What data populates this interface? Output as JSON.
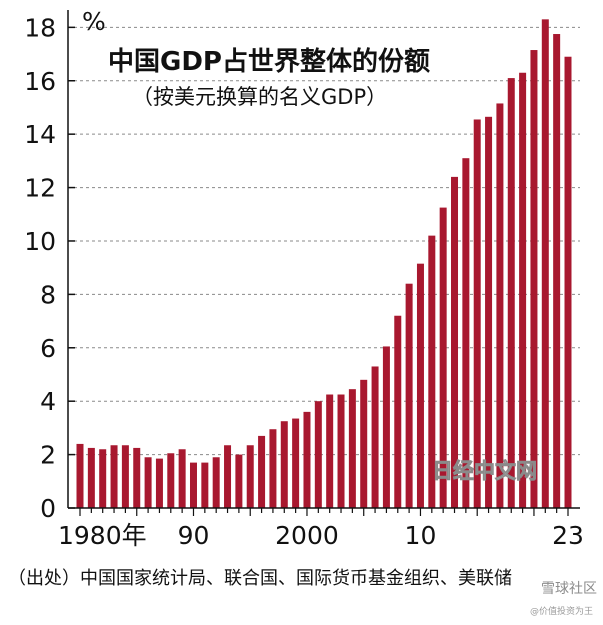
{
  "chart_data": {
    "type": "bar",
    "title": "中国GDP占世界整体的份额",
    "subtitle": "（按美元换算的名义GDP）",
    "unit": "%",
    "x": [
      1980,
      1981,
      1982,
      1983,
      1984,
      1985,
      1986,
      1987,
      1988,
      1989,
      1990,
      1991,
      1992,
      1993,
      1994,
      1995,
      1996,
      1997,
      1998,
      1999,
      2000,
      2001,
      2002,
      2003,
      2004,
      2005,
      2006,
      2007,
      2008,
      2009,
      2010,
      2011,
      2012,
      2013,
      2014,
      2015,
      2016,
      2017,
      2018,
      2019,
      2020,
      2021,
      2022,
      2023
    ],
    "values": [
      2.4,
      2.25,
      2.2,
      2.35,
      2.35,
      2.25,
      1.9,
      1.85,
      2.05,
      2.2,
      1.7,
      1.7,
      1.9,
      2.35,
      2.0,
      2.35,
      2.7,
      2.95,
      3.25,
      3.35,
      3.6,
      4.0,
      4.25,
      4.25,
      4.45,
      4.8,
      5.3,
      6.05,
      7.2,
      8.4,
      9.15,
      10.2,
      11.25,
      12.4,
      13.1,
      14.55,
      14.65,
      15.15,
      16.1,
      16.3,
      17.15,
      18.3,
      17.75,
      16.9
    ],
    "ylim": [
      0,
      18.5
    ],
    "yticks": [
      0,
      2,
      4,
      6,
      8,
      10,
      12,
      14,
      16,
      18
    ],
    "xtick_labels": [
      {
        "x": 1980,
        "label": "1980年"
      },
      {
        "x": 1990,
        "label": "90"
      },
      {
        "x": 2000,
        "label": "2000"
      },
      {
        "x": 2010,
        "label": "10"
      },
      {
        "x": 2023,
        "label": "23"
      }
    ],
    "grid": "dashed-horizontal",
    "bar_color": "#a8182f"
  },
  "source": "（出处）中国国家统计局、联合国、国际货币基金组织、美联储",
  "watermark": "日经中文网",
  "corner_mark": "雪球社区",
  "footer_mark": "@价值投资为王"
}
